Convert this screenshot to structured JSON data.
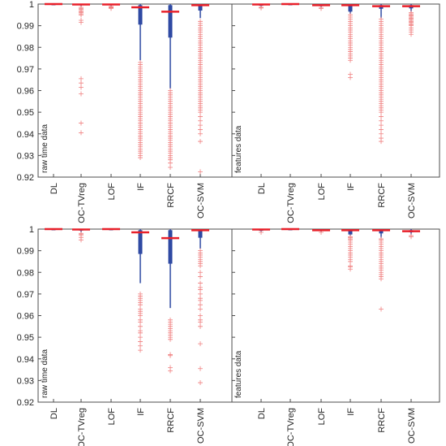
{
  "chart_data": [
    {
      "type": "box",
      "ylim": [
        0.92,
        1.0
      ],
      "yticks": [
        "0.92",
        "0.93",
        "0.94",
        "0.95",
        "0.96",
        "0.97",
        "0.98",
        "0.99",
        "1"
      ],
      "grid": false,
      "panels": [
        {
          "label": "raw time data",
          "categories": [
            "DL",
            "OC-TVreg",
            "LOF",
            "IF",
            "RRCF",
            "OC-SVM"
          ],
          "boxes": [
            {
              "median": 1.0,
              "q1": 0.9998,
              "q3": 1.0,
              "whisker_low": 0.9995,
              "whisker_high": 1.0,
              "outliers": []
            },
            {
              "median": 0.9998,
              "q1": 0.9994,
              "q3": 1.0,
              "whisker_low": 0.999,
              "whisker_high": 1.0,
              "outliers": [
                0.9985,
                0.998,
                0.9975,
                0.997,
                0.9965,
                0.996,
                0.9955,
                0.995,
                0.9925,
                0.9915,
                0.9655,
                0.9635,
                0.9615,
                0.9585,
                0.945,
                0.9405
              ]
            },
            {
              "median": 0.9998,
              "q1": 0.9994,
              "q3": 1.0,
              "whisker_low": 0.999,
              "whisker_high": 1.0,
              "outliers": [
                0.9988,
                0.9986,
                0.9984,
                0.9982,
                0.998
              ]
            },
            {
              "median": 0.9985,
              "q1": 0.9905,
              "q3": 0.9995,
              "whisker_low": 0.974,
              "whisker_high": 1.0,
              "outliers": [
                0.973,
                0.972,
                0.971,
                0.97,
                0.969,
                0.968,
                0.967,
                0.966,
                0.965,
                0.964,
                0.963,
                0.962,
                0.961,
                0.96,
                0.959,
                0.958,
                0.957,
                0.956,
                0.955,
                0.954,
                0.953,
                0.952,
                0.951,
                0.95,
                0.949,
                0.948,
                0.947,
                0.946,
                0.945,
                0.944,
                0.943,
                0.942,
                0.941,
                0.94,
                0.939,
                0.938,
                0.937,
                0.936,
                0.935,
                0.934,
                0.933,
                0.932,
                0.931,
                0.93,
                0.929
              ]
            },
            {
              "median": 0.9965,
              "q1": 0.9845,
              "q3": 0.9995,
              "whisker_low": 0.961,
              "whisker_high": 1.0,
              "outliers": [
                0.96,
                0.959,
                0.958,
                0.957,
                0.956,
                0.955,
                0.954,
                0.953,
                0.952,
                0.951,
                0.95,
                0.949,
                0.948,
                0.947,
                0.946,
                0.945,
                0.944,
                0.943,
                0.942,
                0.941,
                0.94,
                0.939,
                0.938,
                0.937,
                0.936,
                0.935,
                0.934,
                0.933,
                0.932,
                0.931,
                0.93,
                0.929,
                0.928,
                0.9265,
                0.9245
              ]
            },
            {
              "median": 0.9995,
              "q1": 0.997,
              "q3": 1.0,
              "whisker_low": 0.9935,
              "whisker_high": 1.0,
              "outliers": [
                0.992,
                0.991,
                0.99,
                0.989,
                0.988,
                0.987,
                0.986,
                0.985,
                0.984,
                0.983,
                0.982,
                0.981,
                0.98,
                0.979,
                0.978,
                0.977,
                0.976,
                0.975,
                0.974,
                0.973,
                0.972,
                0.971,
                0.97,
                0.969,
                0.968,
                0.967,
                0.966,
                0.965,
                0.964,
                0.963,
                0.962,
                0.961,
                0.96,
                0.959,
                0.958,
                0.957,
                0.956,
                0.955,
                0.954,
                0.953,
                0.952,
                0.951,
                0.95,
                0.948,
                0.946,
                0.944,
                0.942,
                0.94,
                0.9365,
                0.9225
              ]
            }
          ]
        },
        {
          "label": "features data",
          "categories": [
            "DL",
            "OC-TVreg",
            "LOF",
            "IF",
            "RRCF",
            "OC-SVM"
          ],
          "boxes": [
            {
              "median": 0.9998,
              "q1": 0.9992,
              "q3": 1.0,
              "whisker_low": 0.9988,
              "whisker_high": 1.0,
              "outliers": [
                0.9985,
                0.9982
              ]
            },
            {
              "median": 1.0,
              "q1": 0.9998,
              "q3": 1.0,
              "whisker_low": 0.9996,
              "whisker_high": 1.0,
              "outliers": []
            },
            {
              "median": 0.9995,
              "q1": 0.999,
              "q3": 1.0,
              "whisker_low": 0.9985,
              "whisker_high": 1.0,
              "outliers": [
                0.9982,
                0.998
              ]
            },
            {
              "median": 0.9995,
              "q1": 0.9965,
              "q3": 1.0,
              "whisker_low": 0.9955,
              "whisker_high": 1.0,
              "outliers": [
                0.995,
                0.994,
                0.993,
                0.992,
                0.991,
                0.99,
                0.989,
                0.988,
                0.987,
                0.986,
                0.985,
                0.984,
                0.983,
                0.982,
                0.981,
                0.98,
                0.979,
                0.978,
                0.977,
                0.976,
                0.975,
                0.974,
                0.9675,
                0.966
              ]
            },
            {
              "median": 0.999,
              "q1": 0.9978,
              "q3": 0.9995,
              "whisker_low": 0.9935,
              "whisker_high": 1.0,
              "outliers": [
                0.993,
                0.992,
                0.991,
                0.99,
                0.989,
                0.988,
                0.987,
                0.986,
                0.985,
                0.984,
                0.983,
                0.982,
                0.981,
                0.98,
                0.979,
                0.978,
                0.977,
                0.976,
                0.975,
                0.974,
                0.973,
                0.972,
                0.971,
                0.97,
                0.969,
                0.968,
                0.967,
                0.966,
                0.965,
                0.964,
                0.963,
                0.962,
                0.961,
                0.96,
                0.959,
                0.958,
                0.957,
                0.956,
                0.955,
                0.954,
                0.953,
                0.952,
                0.951,
                0.95,
                0.948,
                0.946,
                0.944,
                0.942,
                0.94,
                0.938,
                0.9365
              ]
            },
            {
              "median": 0.999,
              "q1": 0.998,
              "q3": 0.9995,
              "whisker_low": 0.9965,
              "whisker_high": 1.0,
              "outliers": [
                0.996,
                0.9955,
                0.995,
                0.9945,
                0.994,
                0.9935,
                0.993,
                0.9925,
                0.992,
                0.9915,
                0.991,
                0.9905,
                0.99,
                0.989,
                0.988,
                0.987,
                0.986
              ]
            }
          ]
        }
      ]
    },
    {
      "type": "box",
      "ylim": [
        0.92,
        1.0
      ],
      "yticks": [
        "0.92",
        "0.93",
        "0.94",
        "0.95",
        "0.96",
        "0.97",
        "0.98",
        "0.99",
        "1"
      ],
      "grid": false,
      "panels": [
        {
          "label": "raw time data",
          "categories": [
            "DL",
            "OC-TVreg",
            "LOF",
            "IF",
            "RRCF",
            "OC-SVM"
          ],
          "boxes": [
            {
              "median": 1.0,
              "q1": 0.9998,
              "q3": 1.0,
              "whisker_low": 0.9996,
              "whisker_high": 1.0,
              "outliers": []
            },
            {
              "median": 0.9998,
              "q1": 0.9993,
              "q3": 1.0,
              "whisker_low": 0.9985,
              "whisker_high": 1.0,
              "outliers": [
                0.998,
                0.9975,
                0.997,
                0.996,
                0.995
              ]
            },
            {
              "median": 1.0,
              "q1": 0.9998,
              "q3": 1.0,
              "whisker_low": 0.9996,
              "whisker_high": 1.0,
              "outliers": []
            },
            {
              "median": 0.9985,
              "q1": 0.9885,
              "q3": 0.9995,
              "whisker_low": 0.975,
              "whisker_high": 1.0,
              "outliers": [
                0.97,
                0.969,
                0.968,
                0.967,
                0.966,
                0.965,
                0.963,
                0.962,
                0.961,
                0.96,
                0.958,
                0.957,
                0.955,
                0.953,
                0.952,
                0.95,
                0.948,
                0.946,
                0.944
              ]
            },
            {
              "median": 0.9958,
              "q1": 0.984,
              "q3": 0.9995,
              "whisker_low": 0.9635,
              "whisker_high": 1.0,
              "outliers": [
                0.958,
                0.957,
                0.956,
                0.955,
                0.954,
                0.953,
                0.952,
                0.951,
                0.95,
                0.949,
                0.942,
                0.9415,
                0.936,
                0.9345
              ]
            },
            {
              "median": 0.9995,
              "q1": 0.996,
              "q3": 1.0,
              "whisker_low": 0.991,
              "whisker_high": 1.0,
              "outliers": [
                0.99,
                0.989,
                0.988,
                0.987,
                0.986,
                0.985,
                0.984,
                0.983,
                0.98,
                0.978,
                0.975,
                0.973,
                0.972,
                0.97,
                0.968,
                0.967,
                0.965,
                0.963,
                0.96,
                0.958,
                0.957,
                0.955,
                0.947,
                0.9355,
                0.929
              ]
            }
          ]
        },
        {
          "label": "features data",
          "categories": [
            "DL",
            "OC-TVreg",
            "LOF",
            "IF",
            "RRCF",
            "OC-SVM"
          ],
          "boxes": [
            {
              "median": 0.9998,
              "q1": 0.9992,
              "q3": 1.0,
              "whisker_low": 0.9988,
              "whisker_high": 1.0,
              "outliers": [
                0.9985
              ]
            },
            {
              "median": 1.0,
              "q1": 0.9998,
              "q3": 1.0,
              "whisker_low": 0.9996,
              "whisker_high": 1.0,
              "outliers": []
            },
            {
              "median": 0.9995,
              "q1": 0.9992,
              "q3": 1.0,
              "whisker_low": 0.9988,
              "whisker_high": 1.0,
              "outliers": [
                0.9985
              ]
            },
            {
              "median": 0.9995,
              "q1": 0.9975,
              "q3": 1.0,
              "whisker_low": 0.997,
              "whisker_high": 1.0,
              "outliers": [
                0.9965,
                0.996,
                0.9955,
                0.995,
                0.994,
                0.993,
                0.992,
                0.991,
                0.99,
                0.989,
                0.988,
                0.987,
                0.986,
                0.985,
                0.983,
                0.9825,
                0.9815
              ]
            },
            {
              "median": 0.9995,
              "q1": 0.998,
              "q3": 1.0,
              "whisker_low": 0.996,
              "whisker_high": 1.0,
              "outliers": [
                0.9955,
                0.995,
                0.994,
                0.993,
                0.992,
                0.991,
                0.99,
                0.989,
                0.988,
                0.987,
                0.986,
                0.985,
                0.984,
                0.983,
                0.982,
                0.981,
                0.98,
                0.979,
                0.978,
                0.977,
                0.963
              ]
            },
            {
              "median": 0.999,
              "q1": 0.9985,
              "q3": 0.9995,
              "whisker_low": 0.9975,
              "whisker_high": 1.0,
              "outliers": [
                0.997,
                0.9965
              ]
            }
          ]
        }
      ]
    }
  ]
}
